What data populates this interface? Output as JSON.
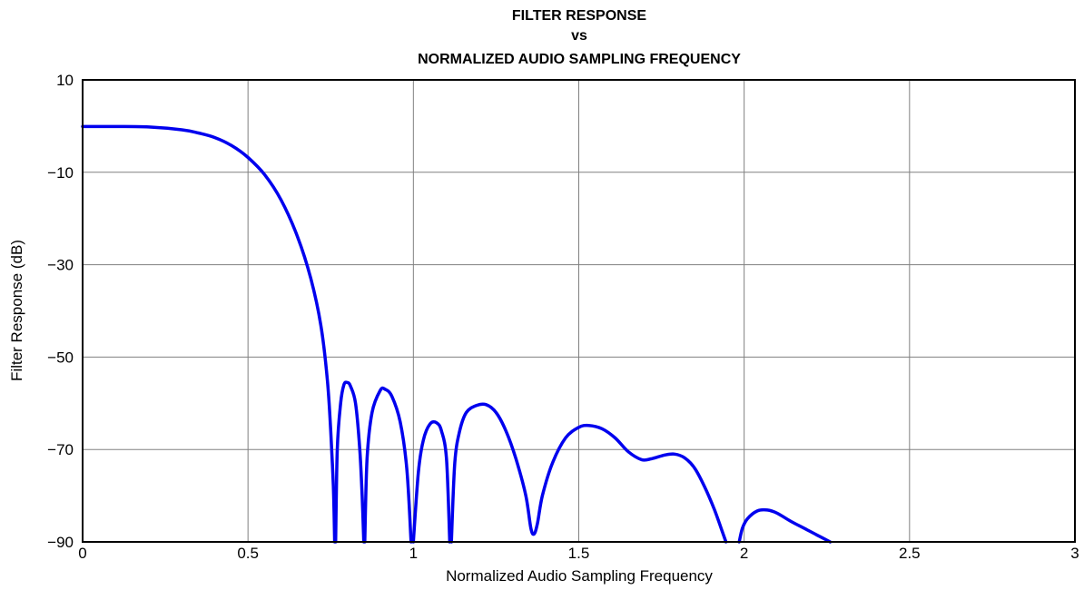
{
  "chart_data": {
    "type": "line",
    "title_lines": [
      "FILTER RESPONSE",
      "vs",
      "NORMALIZED AUDIO SAMPLING FREQUENCY"
    ],
    "xlabel": "Normalized Audio Sampling Frequency",
    "ylabel": "Filter Response (dB)",
    "xlim": [
      0,
      3
    ],
    "ylim": [
      -90,
      10
    ],
    "x_ticks": [
      0,
      0.5,
      1,
      1.5,
      2,
      2.5,
      3
    ],
    "x_tick_labels": [
      "0",
      "0.5",
      "1",
      "1.5",
      "2",
      "2.5",
      "3"
    ],
    "y_ticks": [
      10,
      -10,
      -30,
      -50,
      -70,
      -90
    ],
    "y_tick_labels": [
      "10",
      "−10",
      "−30",
      "−50",
      "−70",
      "−90"
    ],
    "grid": true,
    "series": [
      {
        "color": "#0000ee",
        "segments": [
          [
            [
              0,
              -0.1
            ],
            [
              0.1,
              -0.1
            ],
            [
              0.2,
              -0.2
            ],
            [
              0.3,
              -0.8
            ],
            [
              0.35,
              -1.5
            ],
            [
              0.4,
              -2.5
            ],
            [
              0.45,
              -4.2
            ],
            [
              0.5,
              -6.8
            ],
            [
              0.55,
              -10.5
            ],
            [
              0.6,
              -16
            ],
            [
              0.65,
              -24
            ],
            [
              0.69,
              -33
            ],
            [
              0.72,
              -43
            ],
            [
              0.74,
              -55
            ],
            [
              0.75,
              -66
            ],
            [
              0.758,
              -78
            ],
            [
              0.762,
              -90
            ]
          ],
          [
            [
              0.765,
              -90
            ],
            [
              0.77,
              -70
            ],
            [
              0.78,
              -60
            ],
            [
              0.79,
              -56
            ],
            [
              0.8,
              -55.5
            ],
            [
              0.81,
              -56.3
            ],
            [
              0.825,
              -60
            ],
            [
              0.838,
              -70
            ],
            [
              0.845,
              -80
            ],
            [
              0.85,
              -90
            ]
          ],
          [
            [
              0.853,
              -90
            ],
            [
              0.86,
              -72
            ],
            [
              0.875,
              -62
            ],
            [
              0.9,
              -57.2
            ],
            [
              0.915,
              -57
            ],
            [
              0.935,
              -58.5
            ],
            [
              0.96,
              -64
            ],
            [
              0.98,
              -74
            ],
            [
              0.993,
              -90
            ]
          ],
          [
            [
              1.0,
              -90
            ],
            [
              1.015,
              -75
            ],
            [
              1.03,
              -68
            ],
            [
              1.05,
              -64.5
            ],
            [
              1.07,
              -64.2
            ],
            [
              1.085,
              -66
            ],
            [
              1.1,
              -72
            ],
            [
              1.11,
              -90
            ]
          ],
          [
            [
              1.115,
              -90
            ],
            [
              1.125,
              -73
            ],
            [
              1.14,
              -66
            ],
            [
              1.16,
              -62
            ],
            [
              1.19,
              -60.5
            ],
            [
              1.22,
              -60.3
            ],
            [
              1.25,
              -62
            ],
            [
              1.28,
              -66
            ],
            [
              1.31,
              -72
            ],
            [
              1.34,
              -80
            ],
            [
              1.355,
              -87
            ],
            [
              1.365,
              -88.3
            ],
            [
              1.375,
              -86
            ],
            [
              1.39,
              -80
            ],
            [
              1.42,
              -73
            ],
            [
              1.46,
              -67.5
            ],
            [
              1.5,
              -65.2
            ],
            [
              1.53,
              -64.8
            ],
            [
              1.57,
              -65.5
            ],
            [
              1.61,
              -67.5
            ],
            [
              1.65,
              -70.5
            ],
            [
              1.69,
              -72.2
            ],
            [
              1.72,
              -72
            ],
            [
              1.76,
              -71.2
            ],
            [
              1.79,
              -71
            ],
            [
              1.82,
              -71.8
            ],
            [
              1.85,
              -74
            ],
            [
              1.88,
              -78
            ],
            [
              1.91,
              -83
            ],
            [
              1.935,
              -88
            ],
            [
              1.945,
              -90
            ]
          ],
          [
            [
              1.985,
              -90
            ],
            [
              1.995,
              -87
            ],
            [
              2.01,
              -85
            ],
            [
              2.04,
              -83.3
            ],
            [
              2.07,
              -83.1
            ],
            [
              2.1,
              -83.8
            ],
            [
              2.14,
              -85.5
            ],
            [
              2.18,
              -87
            ],
            [
              2.22,
              -88.5
            ],
            [
              2.26,
              -90
            ]
          ]
        ]
      }
    ]
  }
}
